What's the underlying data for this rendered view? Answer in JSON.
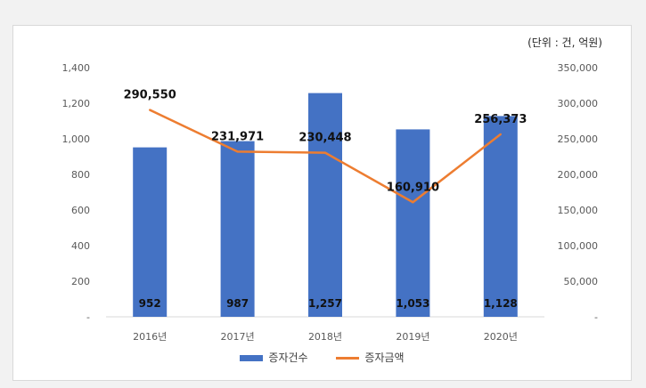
{
  "unit_note": "(단위 : 건, 억원)",
  "chart_data": {
    "type": "bar",
    "categories": [
      "2016년",
      "2017년",
      "2018년",
      "2019년",
      "2020년"
    ],
    "series": [
      {
        "name": "증자건수",
        "type": "bar",
        "axis": "left",
        "values": [
          952,
          987,
          1257,
          1053,
          1128
        ],
        "labels": [
          "952",
          "987",
          "1,257",
          "1,053",
          "1,128"
        ],
        "color": "#4472c4"
      },
      {
        "name": "증자금액",
        "type": "line",
        "axis": "right",
        "values": [
          290550,
          231971,
          230448,
          160910,
          256373
        ],
        "labels": [
          "290,550",
          "231,971",
          "230,448",
          "160,910",
          "256,373"
        ],
        "color": "#ed7d31"
      }
    ],
    "y_left": {
      "ylim": [
        0,
        1400
      ],
      "ticks": [
        "-",
        "200",
        "400",
        "600",
        "800",
        "1,000",
        "1,200",
        "1,400"
      ]
    },
    "y_right": {
      "ylim": [
        0,
        350000
      ],
      "ticks": [
        "-",
        "50,000",
        "100,000",
        "150,000",
        "200,000",
        "250,000",
        "300,000",
        "350,000"
      ]
    },
    "legend": "bottom",
    "grid": false
  }
}
